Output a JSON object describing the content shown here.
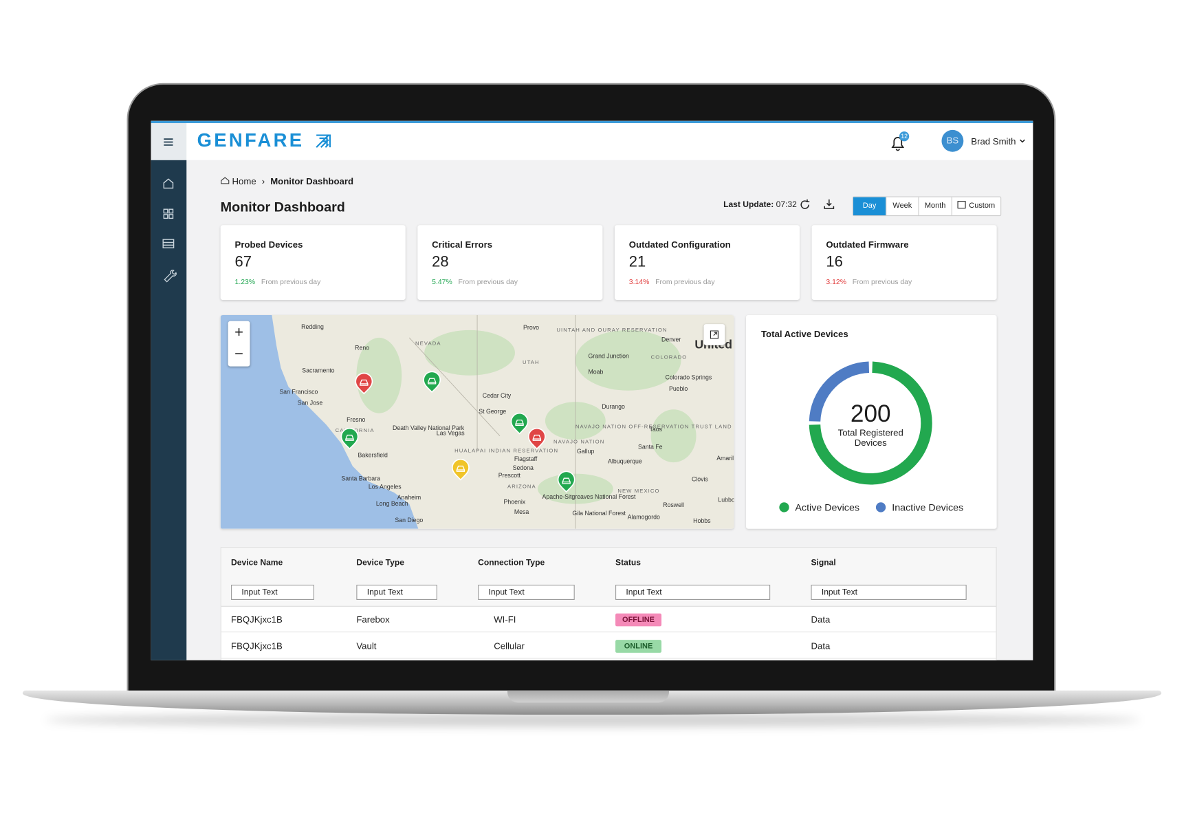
{
  "header": {
    "brand": "GENFARE",
    "notifications": "12",
    "user_initials": "BS",
    "user_name": "Brad Smith"
  },
  "breadcrumb": [
    "Home",
    "Monitor Dashboard"
  ],
  "title": "Monitor Dashboard",
  "last_update": {
    "label": "Last Update:",
    "time": "07:32"
  },
  "ranges": [
    "Day",
    "Week",
    "Month",
    "Custom"
  ],
  "kpis": [
    {
      "label": "Probed Devices",
      "value": "67",
      "change": "1.23%",
      "trend": "up",
      "trend_color": "#22a652",
      "note": "From previous day"
    },
    {
      "label": "Critical Errors",
      "value": "28",
      "change": "5.47%",
      "trend": "down",
      "trend_color": "#22a652",
      "note": "From previous day"
    },
    {
      "label": "Outdated Configuration",
      "value": "21",
      "change": "3.14%",
      "trend": "up",
      "trend_color": "#e03a3a",
      "note": "From previous day"
    },
    {
      "label": "Outdated Firmware",
      "value": "16",
      "change": "3.12%",
      "trend": "up",
      "trend_color": "#e03a3a",
      "note": "From previous day"
    }
  ],
  "map": {
    "labels": [
      "Redding",
      "Reno",
      "NEVADA",
      "Provo",
      "UINTAH AND OURAY RESERVATION",
      "Denver",
      "United",
      "UTAH",
      "Grand Junction",
      "COLORADO",
      "Moab",
      "Colorado Springs",
      "Pueblo",
      "Sacramento",
      "San Francisco",
      "San Jose",
      "Cedar City",
      "St George",
      "Durango",
      "Fresno",
      "CALIFORNIA",
      "Death Valley National Park",
      "Las Vegas",
      "NAVAJO NATION OFF-RESERVATION TRUST LAND",
      "Taos",
      "NAVAJO NATION",
      "Santa Fe",
      "Gallup",
      "Bakersfield",
      "HUALAPAI INDIAN RESERVATION",
      "Flagstaff",
      "Albuquerque",
      "Amarillo",
      "Sedona",
      "Santa Barbara",
      "Los Angeles",
      "Prescott",
      "ARIZONA",
      "Apache-Sitgreaves National Forest",
      "NEW MEXICO",
      "Clovis",
      "Lubbock",
      "Anaheim",
      "Long Beach",
      "Phoenix",
      "Mesa",
      "Roswell",
      "San Diego",
      "Gila National Forest",
      "Alamogordo",
      "Hobbs"
    ]
  },
  "donut": {
    "title": "Total Active Devices",
    "total": "200",
    "total_label": "Total Registered Devices",
    "segments": [
      {
        "name": "Active Devices",
        "color": "#22a84f",
        "value": 150
      },
      {
        "name": "Inactive Devices",
        "color": "#4f7cc4",
        "value": 50
      }
    ]
  },
  "table": {
    "columns": [
      "Device Name",
      "Device Type",
      "Connection Type",
      "Status",
      "Signal"
    ],
    "filter_placeholder": "Input Text",
    "rows": [
      [
        "FBQJKjxc1B",
        "Farebox",
        "WI-FI",
        "OFFLINE",
        "Data"
      ],
      [
        "FBQJKjxc1B",
        "Vault",
        "Cellular",
        "ONLINE",
        "Data"
      ]
    ]
  }
}
